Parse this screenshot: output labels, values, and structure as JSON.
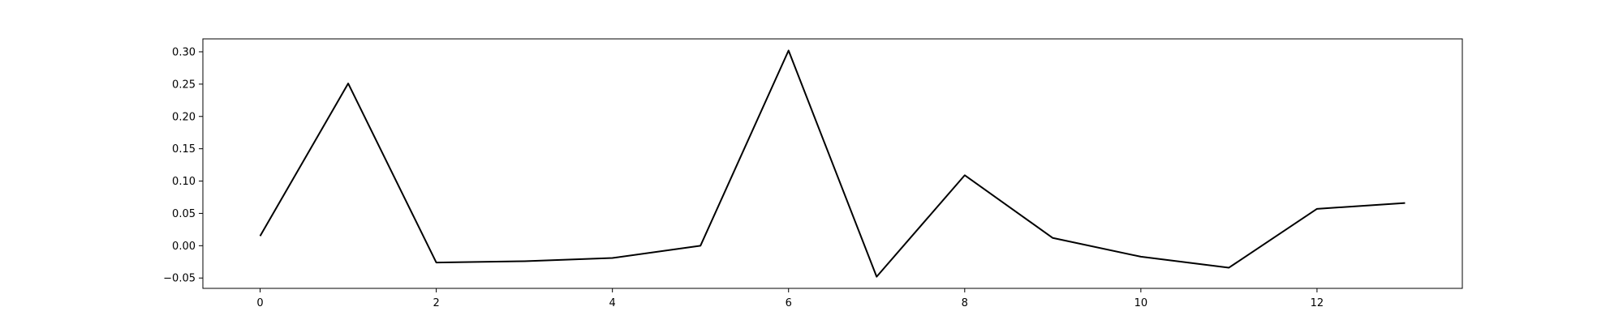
{
  "chart_data": {
    "type": "line",
    "title": "",
    "xlabel": "",
    "ylabel": "",
    "grid": false,
    "legend": "none",
    "line_color": "#000000",
    "xlim": [
      -0.65,
      13.65
    ],
    "ylim": [
      -0.066,
      0.32
    ],
    "x_ticks": [
      0,
      2,
      4,
      6,
      8,
      10,
      12
    ],
    "x_tick_labels": [
      "0",
      "2",
      "4",
      "6",
      "8",
      "10",
      "12"
    ],
    "y_ticks": [
      -0.05,
      0.0,
      0.05,
      0.1,
      0.15,
      0.2,
      0.25,
      0.3
    ],
    "y_tick_labels": [
      "−0.05",
      "0.00",
      "0.05",
      "0.10",
      "0.15",
      "0.20",
      "0.25",
      "0.30"
    ],
    "x": [
      0,
      1,
      2,
      3,
      4,
      5,
      6,
      7,
      8,
      9,
      10,
      11,
      12,
      13
    ],
    "series": [
      {
        "values": [
          0.015,
          0.251,
          -0.026,
          -0.024,
          -0.019,
          0.0,
          0.302,
          -0.048,
          0.109,
          0.012,
          -0.017,
          -0.034,
          0.057,
          0.066
        ]
      }
    ]
  }
}
